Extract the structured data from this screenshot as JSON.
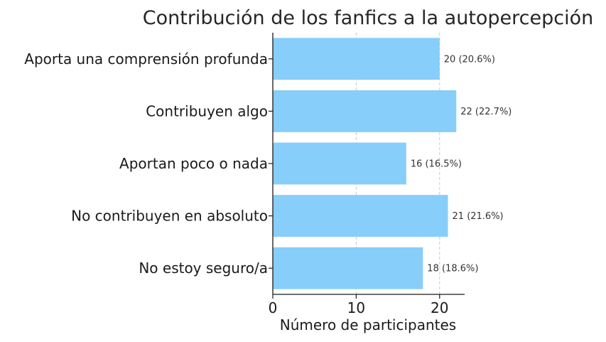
{
  "chart_data": {
    "type": "bar",
    "orientation": "horizontal",
    "title": "Contribución de los fanfics a la autopercepción",
    "xlabel": "Número de participantes",
    "ylabel": "",
    "xlim": [
      0,
      23
    ],
    "xticks": [
      0,
      10,
      20
    ],
    "grid": "vertical dashed",
    "bar_color": "#87cefa",
    "categories": [
      "Aporta una comprensión profunda",
      "Contribuyen algo",
      "Aportan poco o nada",
      "No contribuyen en absoluto",
      "No estoy seguro/a"
    ],
    "values": [
      20,
      22,
      16,
      21,
      18
    ],
    "data_labels": [
      "20 (20.6%)",
      "22 (22.7%)",
      "16 (16.5%)",
      "21 (21.6%)",
      "18 (18.6%)"
    ]
  }
}
